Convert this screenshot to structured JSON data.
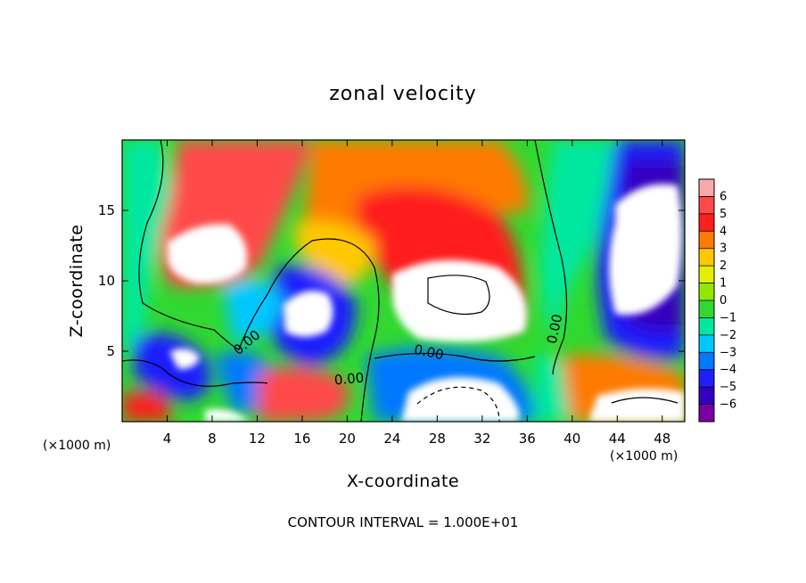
{
  "chart_data": {
    "type": "heatmap",
    "title": "zonal velocity",
    "xlabel": "X-coordinate",
    "ylabel": "Z-coordinate",
    "x_units": "(×1000 m)",
    "y_units": "(×1000 m)",
    "xlim": [
      0,
      50
    ],
    "ylim": [
      0,
      20
    ],
    "x_ticks": [
      "4",
      "8",
      "12",
      "16",
      "20",
      "24",
      "28",
      "32",
      "36",
      "40",
      "44",
      "48"
    ],
    "y_ticks": [
      "5",
      "10",
      "15"
    ],
    "colorbar": {
      "ticks": [
        "6",
        "5",
        "4",
        "3",
        "2",
        "1",
        "0",
        "−1",
        "−2",
        "−3",
        "−4",
        "−5",
        "−6"
      ],
      "colors": [
        "#f8a8a8",
        "#ff4848",
        "#ff1e1e",
        "#ff7a00",
        "#ffc800",
        "#e4f000",
        "#90e800",
        "#30d830",
        "#00e8a0",
        "#00c8ff",
        "#0078ff",
        "#1e1eff",
        "#3400c0",
        "#7a00a0"
      ]
    },
    "contour_labels": [
      "0.00",
      "0.00",
      "0.00",
      "0.00"
    ],
    "footer": "CONTOUR INTERVAL = 1.000E+01"
  }
}
